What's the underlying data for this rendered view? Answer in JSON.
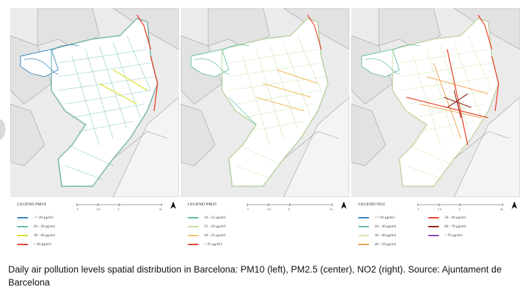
{
  "panels": [
    {
      "id": "pm10",
      "legend_title": "LEGEND PM10",
      "scale_labels": [
        "0",
        "2.5",
        "5",
        "",
        "10"
      ],
      "legend_items": [
        {
          "label": "<= 20 µg/m3",
          "color": "#2f7fb8"
        },
        {
          "label": "20 - 30 µg/m3",
          "color": "#5bb8a8"
        },
        {
          "label": "30 - 40 µg/m3",
          "color": "#d9e021"
        },
        {
          "label": "> 40 µg/m3",
          "color": "#e8402a"
        }
      ]
    },
    {
      "id": "pm25",
      "legend_title": "LEGEND PM25",
      "scale_labels": [
        "0",
        "2.5",
        "5",
        "",
        "10"
      ],
      "legend_items": [
        {
          "label": "10 - 15 µg/m3",
          "color": "#5bb8a8"
        },
        {
          "label": "15 - 20 µg/m3",
          "color": "#bfe0a0"
        },
        {
          "label": "20 - 25 µg/m3",
          "color": "#f2c46a"
        },
        {
          "label": "> 25 µg/m3",
          "color": "#e8402a"
        }
      ]
    },
    {
      "id": "no2",
      "legend_title": "LEGEND NO2",
      "scale_labels": [
        "0",
        "2.5",
        "5",
        "",
        "10"
      ],
      "legend_items": [
        {
          "label": "<= 20 µg/m3",
          "color": "#2f7fb8"
        },
        {
          "label": "20 - 30 µg/m3",
          "color": "#5bb8a8"
        },
        {
          "label": "30 - 40 µg/m3",
          "color": "#cfe6a8"
        },
        {
          "label": "40 - 50 µg/m3",
          "color": "#f0a050"
        },
        {
          "label": "50 - 60 µg/m3",
          "color": "#e8402a"
        },
        {
          "label": "60 - 70 µg/m3",
          "color": "#8b1a10"
        },
        {
          "label": "> 70 µg/m3",
          "color": "#8a3fc0"
        }
      ]
    }
  ],
  "caption": "Daily air pollution levels spatial distribution in Barcelona: PM10 (left), PM2.5 (center), NO2 (right). Source: Ajuntament de Barcelona"
}
